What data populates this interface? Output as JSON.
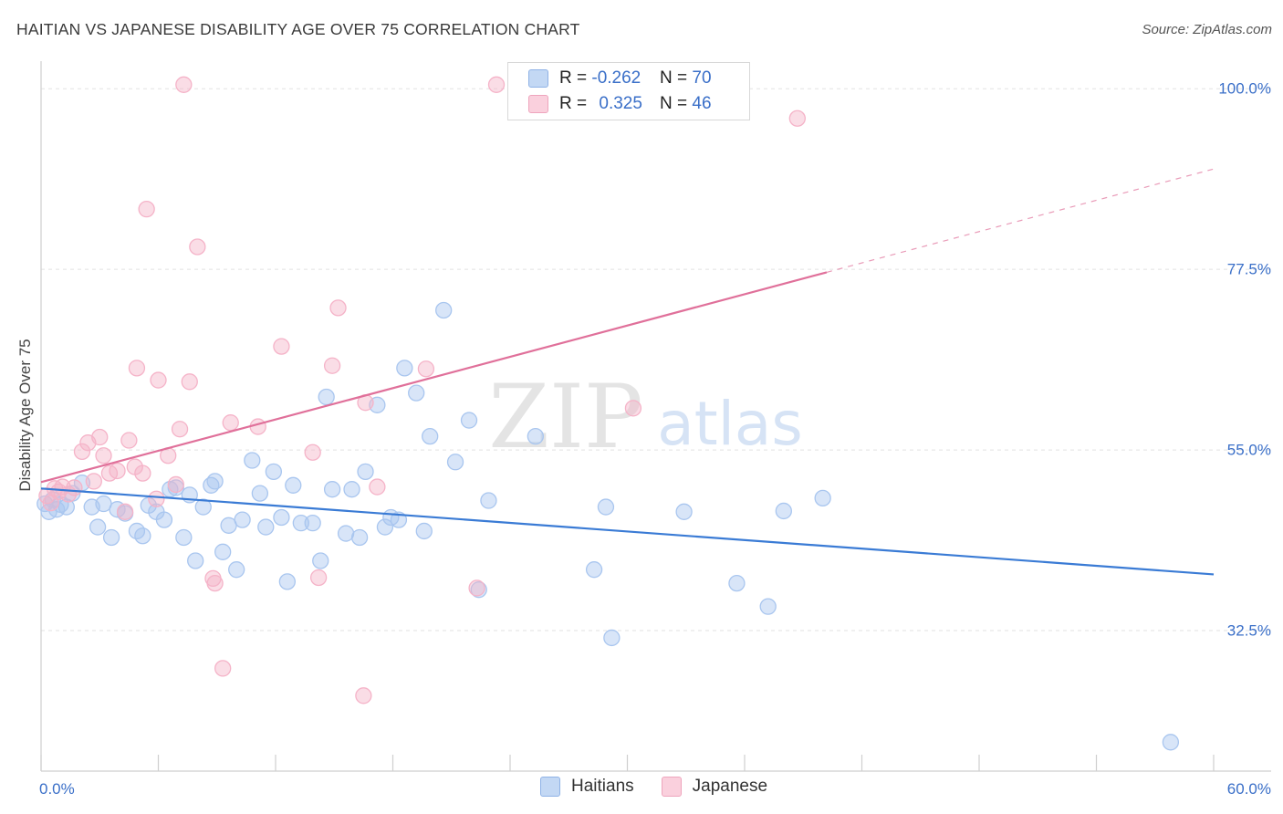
{
  "title": "HAITIAN VS JAPANESE DISABILITY AGE OVER 75 CORRELATION CHART",
  "source": "Source: ZipAtlas.com",
  "watermark": {
    "zip": "ZIP",
    "atlas": "atlas"
  },
  "legend": {
    "haitians": {
      "r_label": "R = ",
      "r_value": "-0.262",
      "n_label": "N = ",
      "n_value": "70",
      "color": "#a9c6ef"
    },
    "japanese": {
      "r_label": "R = ",
      "r_value": "0.325",
      "n_label": "N = ",
      "n_value": "46",
      "color": "#f5b3c8"
    }
  },
  "bottom_legend": {
    "haitians": "Haitians",
    "japanese": "Japanese"
  },
  "chart_data": {
    "type": "scatter",
    "ylabel": "Disability Age Over 75",
    "xlim": [
      0,
      60
    ],
    "ylim": [
      15,
      104
    ],
    "x_tick_labels": [
      "0.0%",
      "60.0%"
    ],
    "y_ticks": [
      {
        "value": 32.5,
        "label": "32.5%"
      },
      {
        "value": 55.0,
        "label": "55.0%"
      },
      {
        "value": 77.5,
        "label": "77.5%"
      },
      {
        "value": 100.0,
        "label": "100.0%"
      }
    ],
    "grid": true,
    "series": [
      {
        "name": "Haitians",
        "color": "#3a7bd5",
        "fill": "#a9c6ef",
        "trend": {
          "x0": 0,
          "y0": 50.2,
          "x1": 60,
          "y1": 39.5,
          "dashed_from": null
        },
        "points": [
          [
            0.2,
            48.3
          ],
          [
            0.4,
            47.3
          ],
          [
            0.6,
            48.8
          ],
          [
            0.8,
            47.6
          ],
          [
            1.0,
            48.2
          ],
          [
            1.3,
            47.9
          ],
          [
            1.6,
            49.6
          ],
          [
            2.1,
            50.9
          ],
          [
            2.6,
            47.9
          ],
          [
            2.9,
            45.4
          ],
          [
            3.2,
            48.3
          ],
          [
            3.6,
            44.1
          ],
          [
            3.9,
            47.6
          ],
          [
            4.3,
            47.1
          ],
          [
            4.9,
            44.9
          ],
          [
            5.2,
            44.3
          ],
          [
            5.5,
            48.1
          ],
          [
            5.9,
            47.3
          ],
          [
            6.3,
            46.3
          ],
          [
            6.6,
            50.1
          ],
          [
            6.9,
            50.3
          ],
          [
            7.3,
            44.1
          ],
          [
            7.6,
            49.4
          ],
          [
            7.9,
            41.2
          ],
          [
            8.3,
            47.9
          ],
          [
            8.7,
            50.6
          ],
          [
            8.9,
            51.1
          ],
          [
            9.3,
            42.3
          ],
          [
            9.6,
            45.6
          ],
          [
            10.0,
            40.1
          ],
          [
            10.3,
            46.3
          ],
          [
            10.8,
            53.7
          ],
          [
            11.2,
            49.6
          ],
          [
            11.5,
            45.4
          ],
          [
            11.9,
            52.3
          ],
          [
            12.3,
            46.6
          ],
          [
            12.6,
            38.6
          ],
          [
            12.9,
            50.6
          ],
          [
            13.3,
            45.9
          ],
          [
            13.9,
            45.9
          ],
          [
            14.3,
            41.2
          ],
          [
            14.6,
            61.6
          ],
          [
            14.9,
            50.1
          ],
          [
            15.6,
            44.6
          ],
          [
            15.9,
            50.1
          ],
          [
            16.3,
            44.1
          ],
          [
            16.6,
            52.3
          ],
          [
            17.2,
            60.6
          ],
          [
            17.6,
            45.4
          ],
          [
            17.9,
            46.6
          ],
          [
            18.3,
            46.3
          ],
          [
            18.6,
            65.2
          ],
          [
            19.2,
            62.1
          ],
          [
            19.6,
            44.9
          ],
          [
            19.9,
            56.7
          ],
          [
            20.6,
            72.4
          ],
          [
            21.2,
            53.5
          ],
          [
            21.9,
            58.7
          ],
          [
            22.4,
            37.6
          ],
          [
            22.9,
            48.7
          ],
          [
            25.3,
            56.7
          ],
          [
            28.3,
            40.1
          ],
          [
            28.9,
            47.9
          ],
          [
            29.2,
            31.6
          ],
          [
            32.9,
            47.3
          ],
          [
            35.6,
            38.4
          ],
          [
            37.2,
            35.5
          ],
          [
            38.0,
            47.4
          ],
          [
            40.0,
            49.0
          ],
          [
            57.8,
            18.6
          ]
        ]
      },
      {
        "name": "Japanese",
        "color": "#e0709a",
        "fill": "#f5b3c8",
        "trend": {
          "x0": 0,
          "y0": 51.0,
          "x1": 60,
          "y1": 90.0,
          "dashed_from": 40.2
        },
        "points": [
          [
            0.3,
            49.3
          ],
          [
            0.5,
            48.4
          ],
          [
            0.7,
            50.2
          ],
          [
            0.9,
            49.8
          ],
          [
            1.1,
            50.4
          ],
          [
            1.4,
            49.5
          ],
          [
            1.7,
            50.3
          ],
          [
            2.1,
            54.8
          ],
          [
            2.4,
            55.9
          ],
          [
            2.7,
            51.1
          ],
          [
            3.0,
            56.6
          ],
          [
            3.2,
            54.3
          ],
          [
            3.5,
            52.1
          ],
          [
            3.9,
            52.4
          ],
          [
            4.3,
            47.3
          ],
          [
            4.5,
            56.2
          ],
          [
            4.8,
            52.9
          ],
          [
            4.9,
            65.2
          ],
          [
            5.2,
            52.1
          ],
          [
            5.4,
            85.0
          ],
          [
            5.9,
            48.9
          ],
          [
            6.0,
            63.7
          ],
          [
            6.5,
            54.3
          ],
          [
            6.9,
            50.7
          ],
          [
            7.1,
            57.6
          ],
          [
            7.3,
            100.5
          ],
          [
            7.6,
            63.5
          ],
          [
            8.0,
            80.3
          ],
          [
            8.8,
            39.0
          ],
          [
            8.9,
            38.4
          ],
          [
            9.3,
            27.8
          ],
          [
            9.7,
            58.4
          ],
          [
            11.1,
            57.9
          ],
          [
            12.3,
            67.9
          ],
          [
            13.9,
            54.7
          ],
          [
            14.2,
            39.1
          ],
          [
            14.9,
            65.5
          ],
          [
            15.2,
            72.7
          ],
          [
            16.5,
            24.4
          ],
          [
            16.6,
            60.9
          ],
          [
            17.2,
            50.4
          ],
          [
            19.7,
            65.1
          ],
          [
            22.3,
            37.8
          ],
          [
            23.3,
            100.5
          ],
          [
            30.3,
            60.2
          ],
          [
            38.7,
            96.3
          ]
        ]
      }
    ]
  }
}
